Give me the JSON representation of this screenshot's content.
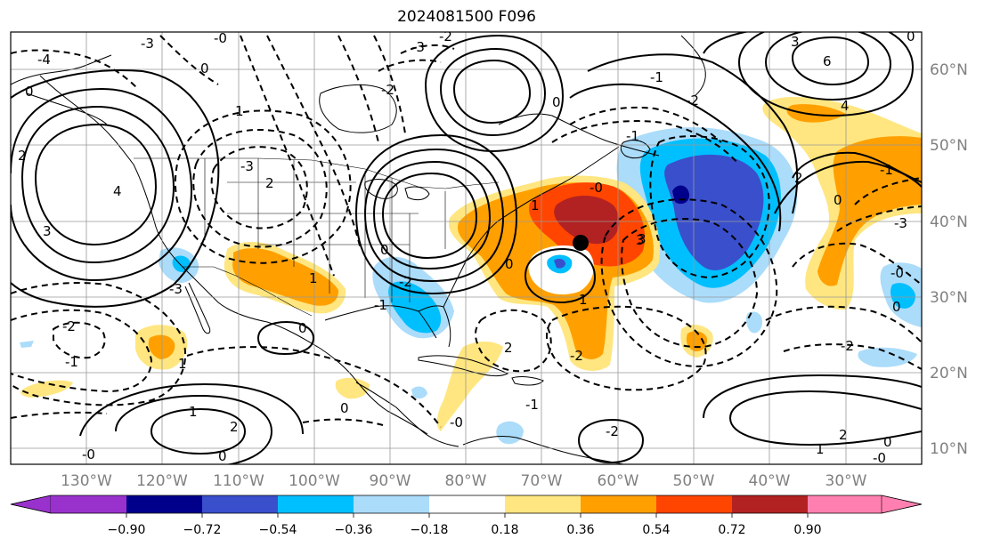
{
  "title": "2024081500 F096",
  "colors": {
    "purple": "#9932cc",
    "navy": "#00008b",
    "blue": "#3a4fcc",
    "deepsky": "#00bfff",
    "lightblue": "#abdcfa",
    "white": "#ffffff",
    "yellow": "#ffe680",
    "orange": "#ffa000",
    "redorange": "#ff4500",
    "firebrick": "#b22222",
    "pink": "#ff80b0"
  },
  "lon_labels": [
    "130°W",
    "120°W",
    "110°W",
    "100°W",
    "90°W",
    "80°W",
    "70°W",
    "60°W",
    "50°W",
    "40°W",
    "30°W"
  ],
  "lat_labels": [
    "60°N",
    "50°N",
    "40°N",
    "30°N",
    "20°N",
    "10°N"
  ],
  "colorbar": {
    "ticks": [
      "−0.90",
      "−0.72",
      "−0.54",
      "−0.36",
      "−0.18",
      "0.18",
      "0.36",
      "0.54",
      "0.72",
      "0.90"
    ]
  },
  "contour_labels": [
    "-3",
    "-0",
    "-4",
    "0",
    "0",
    "1",
    "2",
    "3",
    "4",
    "-3",
    "2",
    "-2",
    "-3",
    "-1",
    "1",
    "1",
    "2",
    "0",
    "6",
    "3",
    "4",
    "0",
    "-2",
    "-3",
    "-2",
    "0",
    "-2",
    "-1",
    "-1",
    "-0",
    "0",
    "0",
    "1",
    "1",
    "0",
    "-2",
    "-1",
    "2",
    "3",
    "0",
    "-0",
    "-1",
    "-3",
    "0",
    "-2",
    "1",
    "2",
    "0",
    "-0",
    "3",
    "-0",
    "-2",
    "0",
    "1",
    "-2",
    "2",
    "-1",
    "-0"
  ],
  "marker": "storm-center-marker"
}
